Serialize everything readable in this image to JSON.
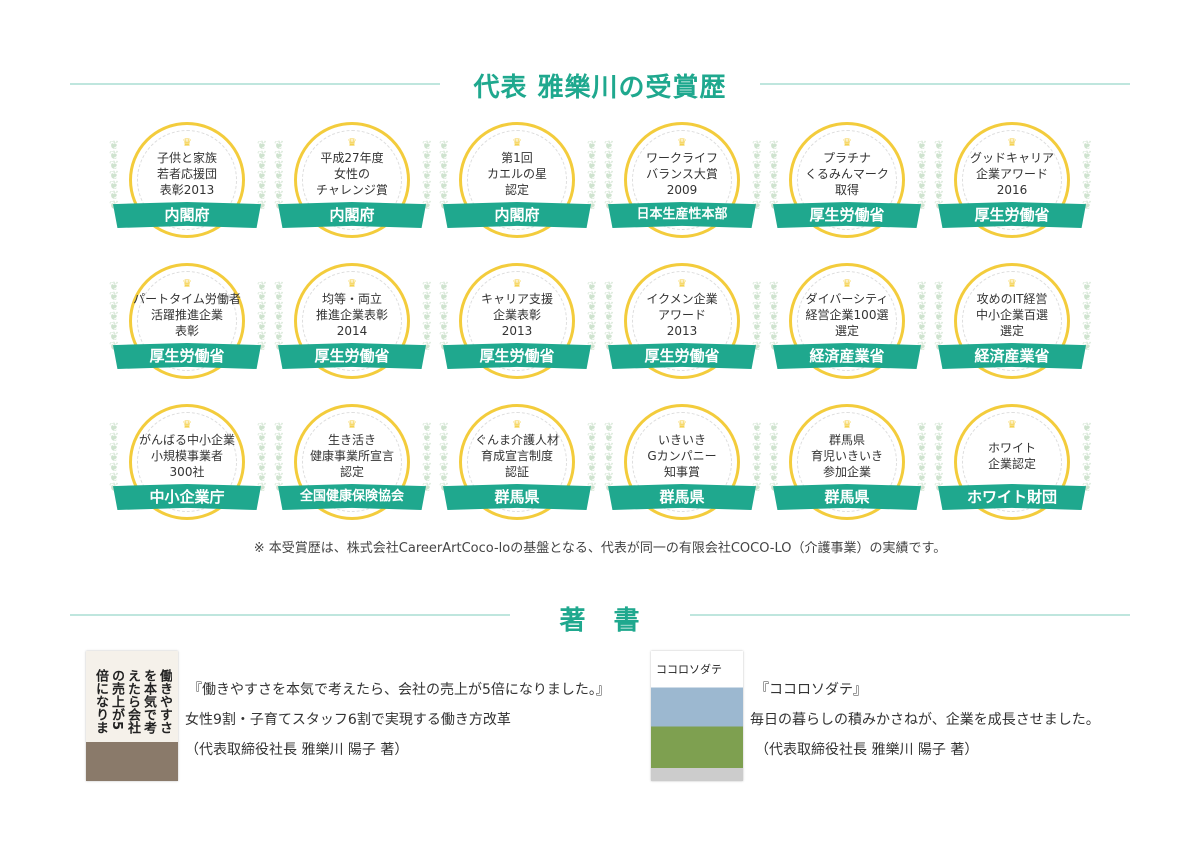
{
  "awards_section": {
    "title": "代表 雅樂川の受賞歴",
    "awards": [
      {
        "lines": [
          "子供と家族",
          "若者応援団",
          "表彰2013"
        ],
        "issuer": "内閣府"
      },
      {
        "lines": [
          "平成27年度",
          "女性の",
          "チャレンジ賞"
        ],
        "issuer": "内閣府"
      },
      {
        "lines": [
          "第1回",
          "カエルの星",
          "認定"
        ],
        "issuer": "内閣府"
      },
      {
        "lines": [
          "ワークライフ",
          "バランス大賞",
          "2009"
        ],
        "issuer": "日本生産性本部"
      },
      {
        "lines": [
          "プラチナ",
          "くるみんマーク",
          "取得"
        ],
        "issuer": "厚生労働省"
      },
      {
        "lines": [
          "グッドキャリア",
          "企業アワード",
          "2016"
        ],
        "issuer": "厚生労働省"
      },
      {
        "lines": [
          "パートタイム労働者",
          "活躍推進企業",
          "表彰"
        ],
        "issuer": "厚生労働省"
      },
      {
        "lines": [
          "均等・両立",
          "推進企業表彰",
          "2014"
        ],
        "issuer": "厚生労働省"
      },
      {
        "lines": [
          "キャリア支援",
          "企業表彰",
          "2013"
        ],
        "issuer": "厚生労働省"
      },
      {
        "lines": [
          "イクメン企業",
          "アワード",
          "2013"
        ],
        "issuer": "厚生労働省"
      },
      {
        "lines": [
          "ダイバーシティ",
          "経営企業100選",
          "選定"
        ],
        "issuer": "経済産業省"
      },
      {
        "lines": [
          "攻めのIT経営",
          "中小企業百選",
          "選定"
        ],
        "issuer": "経済産業省"
      },
      {
        "lines": [
          "がんばる中小企業",
          "小規模事業者",
          "300社"
        ],
        "issuer": "中小企業庁"
      },
      {
        "lines": [
          "生き活き",
          "健康事業所宣言",
          "認定"
        ],
        "issuer": "全国健康保険協会"
      },
      {
        "lines": [
          "ぐんま介護人材",
          "育成宣言制度",
          "認証"
        ],
        "issuer": "群馬県"
      },
      {
        "lines": [
          "いきいき",
          "Gカンパニー",
          "知事賞"
        ],
        "issuer": "群馬県"
      },
      {
        "lines": [
          "群馬県",
          "育児いきいき",
          "参加企業"
        ],
        "issuer": "群馬県"
      },
      {
        "lines": [
          "ホワイト",
          "企業認定"
        ],
        "issuer": "ホワイト財団"
      }
    ],
    "note": "※ 本受賞歴は、株式会社CareerArtCoco-loの基盤となる、代表が同一の有限会社COCO-LO（介護事業）の実績です。"
  },
  "books_section": {
    "title": "著　書",
    "books": [
      {
        "title": "『働きやすさを本気で考えたら、会社の売上が5倍になりました。』",
        "subtitle": "女性9割・子育てスタッフ6割で実現する働き方改革",
        "author": "（代表取締役社長 雅樂川 陽子 著）",
        "cover_text": "働きやすさを本気で考えたら会社の売上が5倍になりました"
      },
      {
        "title": "『ココロソダテ』",
        "subtitle": "毎日の暮らしの積みかさねが、企業を成長させました。",
        "author": "（代表取締役社長 雅樂川 陽子 著）",
        "cover_text": "ココロソダテ"
      }
    ]
  },
  "colors": {
    "accent": "#1fa88e",
    "gold": "#f3cc3c"
  }
}
